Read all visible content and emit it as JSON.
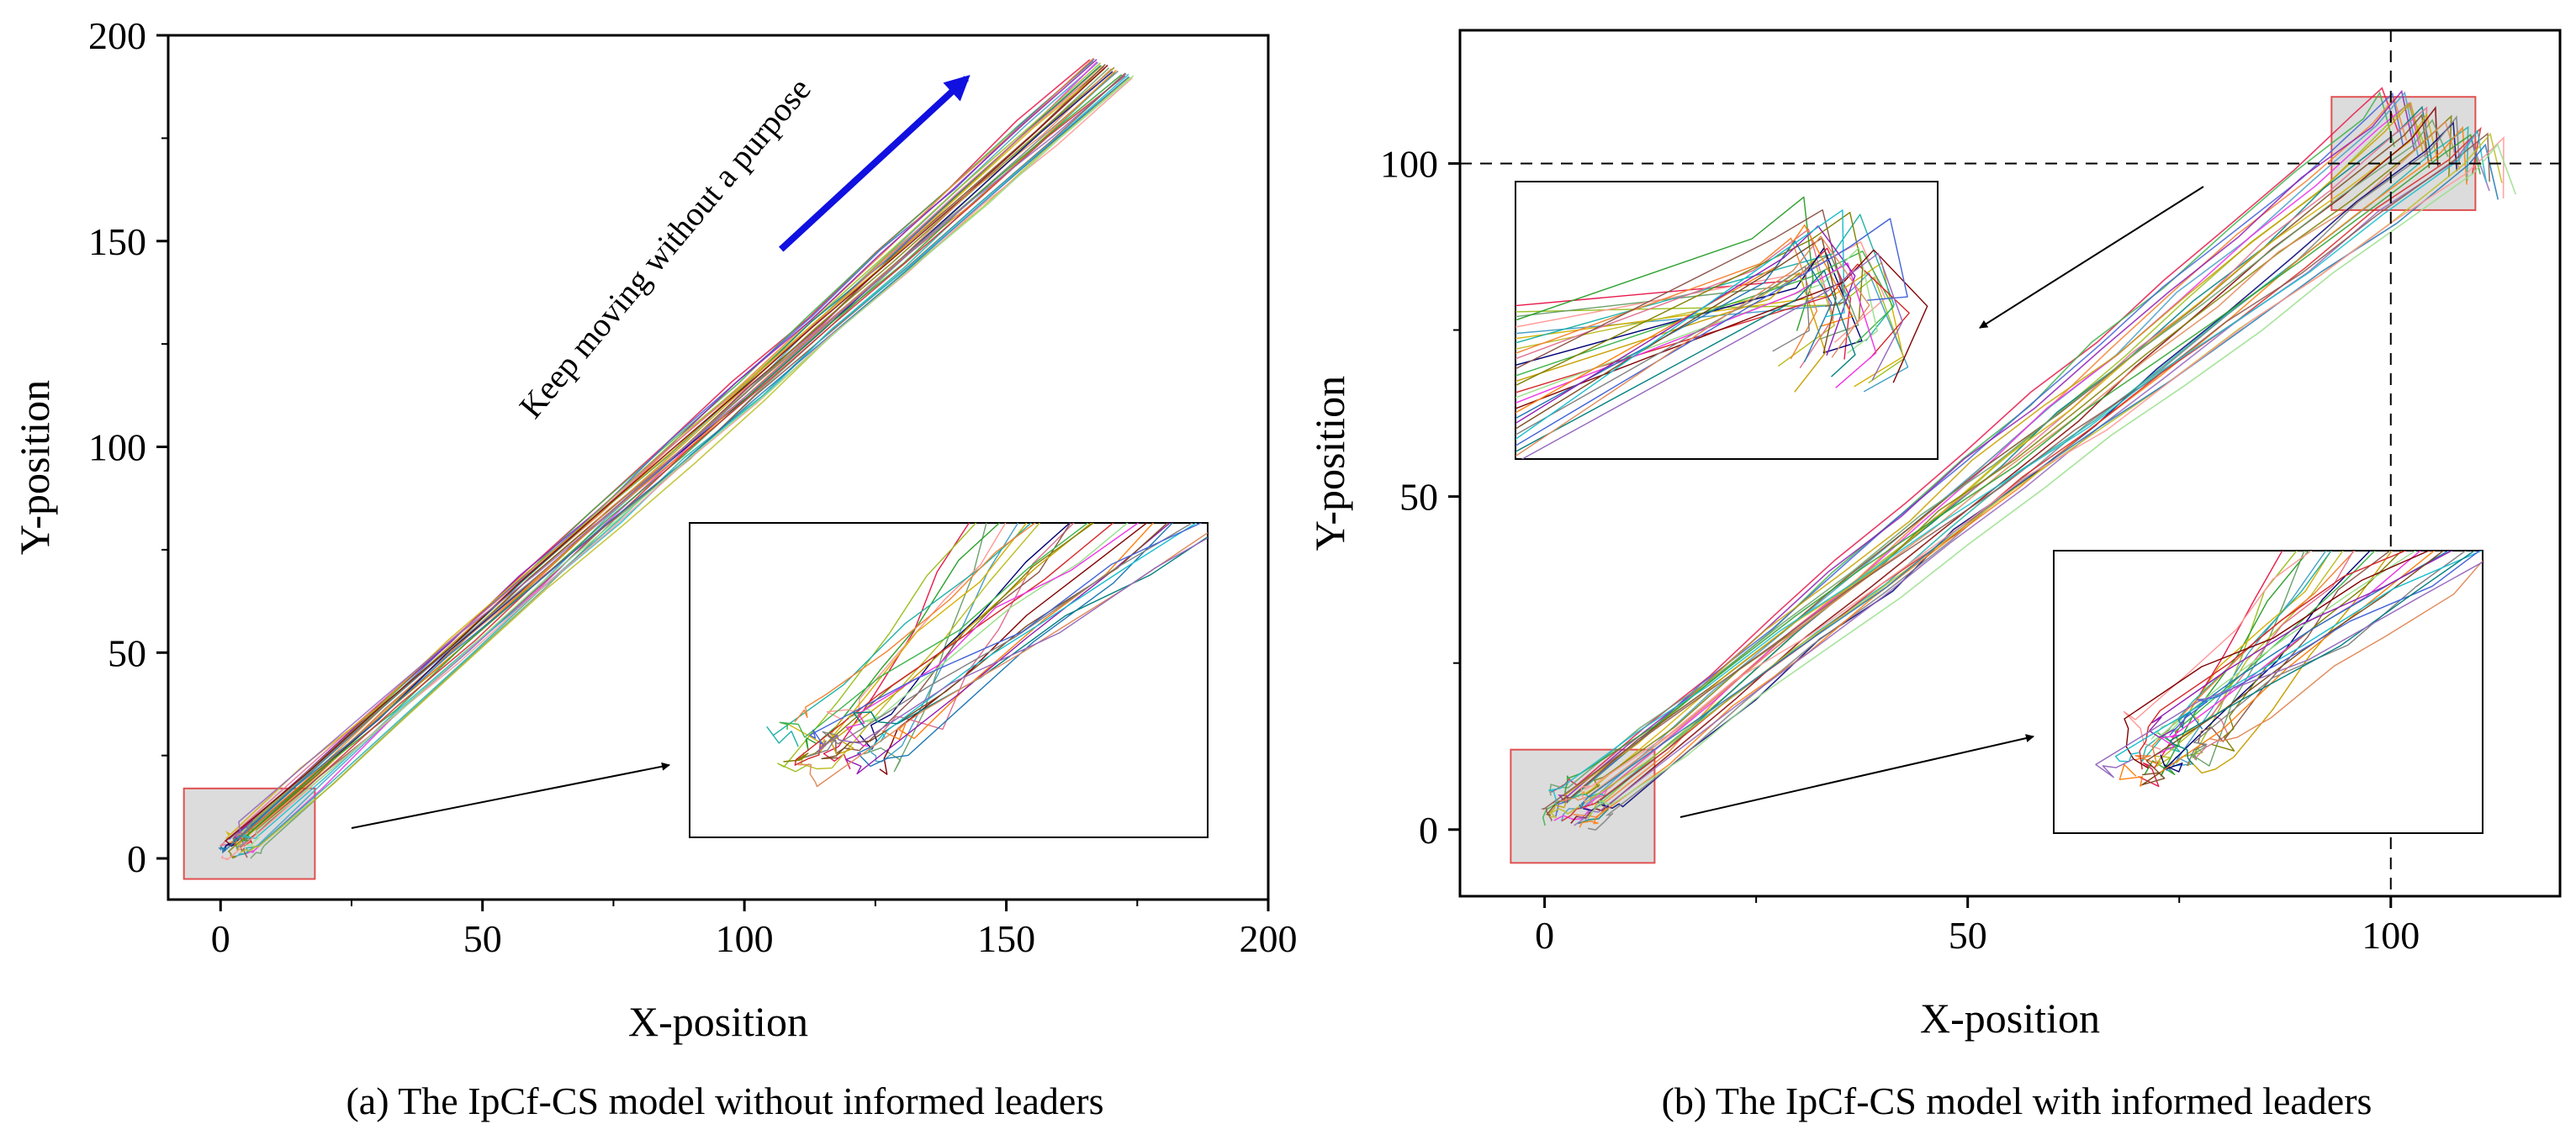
{
  "chart_data": [
    {
      "type": "line",
      "subtype": "trajectory",
      "caption": "(a)  The IpCf-CS model without informed leaders",
      "xlabel": "X-position",
      "ylabel": "Y-position",
      "xlim": [
        -10,
        200
      ],
      "ylim": [
        -10,
        200
      ],
      "xticks": [
        0,
        50,
        100,
        150,
        200
      ],
      "yticks": [
        0,
        50,
        100,
        150,
        200
      ],
      "xtick_labels": [
        "0",
        "50",
        "100",
        "150",
        "200"
      ],
      "ytick_labels": [
        "0",
        "50",
        "100",
        "150",
        "200"
      ],
      "n_trajectories": 30,
      "trajectory_start": [
        3,
        3
      ],
      "trajectory_end": [
        170,
        192
      ],
      "annotation": "Keep moving without a purpose",
      "arrow": {
        "from": [
          107,
          148
        ],
        "to": [
          144,
          192
        ],
        "color": "#1010e0"
      },
      "zoom_region": {
        "x": [
          -7,
          18
        ],
        "y": [
          -5,
          17
        ]
      },
      "inset": true
    },
    {
      "type": "line",
      "subtype": "trajectory",
      "caption": "(b)   The IpCf-CS model with informed leaders",
      "xlabel": "X-position",
      "ylabel": "Y-position",
      "xlim": [
        -10,
        120
      ],
      "ylim": [
        -10,
        120
      ],
      "xticks": [
        0,
        50,
        100
      ],
      "yticks": [
        0,
        50,
        100
      ],
      "xtick_labels": [
        "0",
        "50",
        "100"
      ],
      "ytick_labels": [
        "0",
        "50",
        "100"
      ],
      "n_trajectories": 30,
      "trajectory_start": [
        3,
        3
      ],
      "trajectory_end": [
        103,
        103
      ],
      "target_lines": {
        "x": 100,
        "y": 100
      },
      "zoom_regions": [
        {
          "x": [
            -4,
            13
          ],
          "y": [
            -5,
            12
          ]
        },
        {
          "x": [
            93,
            110
          ],
          "y": [
            93,
            110
          ]
        }
      ],
      "insets": 2
    }
  ],
  "colors": [
    "#e6194b",
    "#3cb44b",
    "#4363d8",
    "#f58231",
    "#911eb4",
    "#46a0c8",
    "#f032e6",
    "#9abf1f",
    "#c8a000",
    "#008080",
    "#e07090",
    "#7a4b1f",
    "#d4b000",
    "#800000",
    "#6aa06a",
    "#808000",
    "#e08a5a",
    "#000075",
    "#808080",
    "#1fb2a8",
    "#ff7f0e",
    "#2ca02c",
    "#d62728",
    "#9467bd",
    "#8c564b",
    "#17becf",
    "#bcbd22",
    "#1f77b4",
    "#ff9896",
    "#98df8a"
  ]
}
